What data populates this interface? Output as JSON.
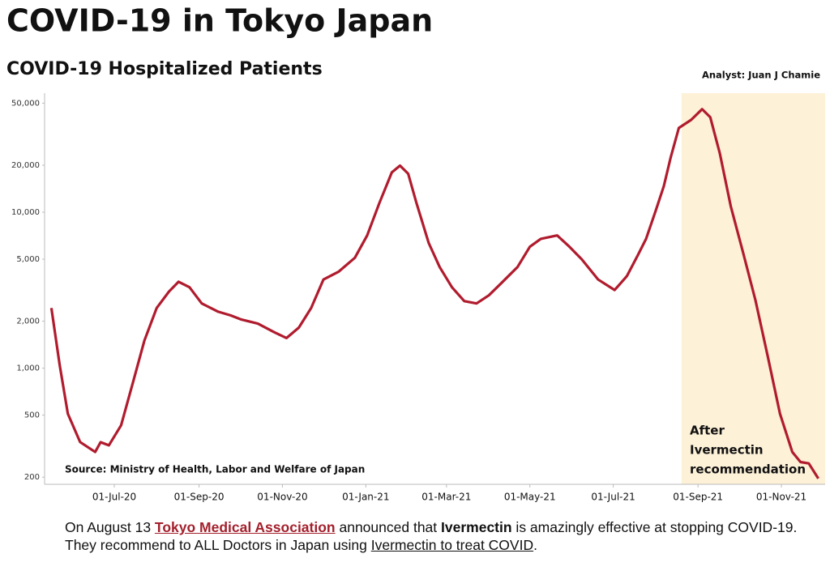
{
  "chart_data": {
    "type": "line",
    "title": "COVID-19 in Tokyo Japan",
    "subtitle": "COVID-19 Hospitalized Patients",
    "analyst": "Analyst: Juan J Chamie",
    "source": "Source: Ministry of Health, Labor and Welfare of Japan",
    "annotation": [
      "After",
      "Ivermectin",
      "recommendation"
    ],
    "highlight": {
      "start": "2021-08-20",
      "end": "2021-12-03",
      "color": "#fdf1d8"
    },
    "log_scale": true,
    "xlim": [
      "2020-05-11",
      "2021-12-03"
    ],
    "xticks": [
      {
        "value": "2020-07-01",
        "label": "01-Jul-20"
      },
      {
        "value": "2020-09-01",
        "label": "01-Sep-20"
      },
      {
        "value": "2020-11-01",
        "label": "01-Nov-20"
      },
      {
        "value": "2021-01-01",
        "label": "01-Jan-21"
      },
      {
        "value": "2021-03-01",
        "label": "01-Mar-21"
      },
      {
        "value": "2021-05-01",
        "label": "01-May-21"
      },
      {
        "value": "2021-07-01",
        "label": "01-Jul-21"
      },
      {
        "value": "2021-09-01",
        "label": "01-Sep-21"
      },
      {
        "value": "2021-11-01",
        "label": "01-Nov-21"
      }
    ],
    "ylim": [
      180,
      58000
    ],
    "yticks": [
      200,
      500,
      {
        "value": 1000,
        "label": "1,000"
      },
      {
        "value": 2000,
        "label": "2,000"
      },
      {
        "value": 5000,
        "label": "5,000"
      },
      {
        "value": 10000,
        "label": "10,000"
      },
      {
        "value": 20000,
        "label": "20,000"
      },
      {
        "value": 50000,
        "label": "50,000"
      }
    ],
    "x": [
      "2020-05-16",
      "2020-05-22",
      "2020-05-28",
      "2020-06-06",
      "2020-06-17",
      "2020-06-21",
      "2020-06-27",
      "2020-07-06",
      "2020-07-15",
      "2020-07-23",
      "2020-08-01",
      "2020-08-10",
      "2020-08-17",
      "2020-08-25",
      "2020-09-03",
      "2020-09-15",
      "2020-09-24",
      "2020-10-02",
      "2020-10-14",
      "2020-10-26",
      "2020-11-04",
      "2020-11-13",
      "2020-11-22",
      "2020-12-01",
      "2020-12-12",
      "2020-12-24",
      "2021-01-02",
      "2021-01-11",
      "2021-01-20",
      "2021-01-26",
      "2021-02-01",
      "2021-02-07",
      "2021-02-16",
      "2021-02-24",
      "2021-03-05",
      "2021-03-14",
      "2021-03-23",
      "2021-04-01",
      "2021-04-10",
      "2021-04-22",
      "2021-05-01",
      "2021-05-09",
      "2021-05-21",
      "2021-05-30",
      "2021-06-08",
      "2021-06-20",
      "2021-07-02",
      "2021-07-11",
      "2021-07-19",
      "2021-07-25",
      "2021-08-01",
      "2021-08-07",
      "2021-08-12",
      "2021-08-18",
      "2021-08-27",
      "2021-09-04",
      "2021-09-10",
      "2021-09-17",
      "2021-09-25",
      "2021-10-04",
      "2021-10-13",
      "2021-10-22",
      "2021-10-31",
      "2021-11-09",
      "2021-11-15",
      "2021-11-21",
      "2021-11-28"
    ],
    "series": [
      {
        "name": "Hospitalized Patients",
        "color": "#b01c2e",
        "values": [
          2430,
          1050,
          510,
          336,
          290,
          335,
          320,
          430,
          830,
          1500,
          2430,
          3100,
          3580,
          3300,
          2600,
          2300,
          2180,
          2050,
          1930,
          1700,
          1560,
          1820,
          2430,
          3700,
          4150,
          5100,
          7100,
          11500,
          18000,
          19900,
          17650,
          11500,
          6350,
          4450,
          3300,
          2690,
          2600,
          2930,
          3500,
          4450,
          6000,
          6750,
          7100,
          6000,
          4980,
          3700,
          3170,
          3900,
          5300,
          6750,
          10200,
          14700,
          22400,
          34700,
          39100,
          45800,
          40600,
          23800,
          10900,
          5500,
          2730,
          1190,
          510,
          290,
          250,
          245,
          196
        ]
      }
    ]
  },
  "footer_note": {
    "line1": [
      "On August 13 ",
      "Tokyo Medical Association",
      " announced that ",
      "Ivermectin",
      " is amazingly effective at stopping COVID-19."
    ],
    "line2": [
      "They recommend to ALL Doctors in Japan using ",
      "Ivermectin to treat COVID",
      "."
    ]
  }
}
